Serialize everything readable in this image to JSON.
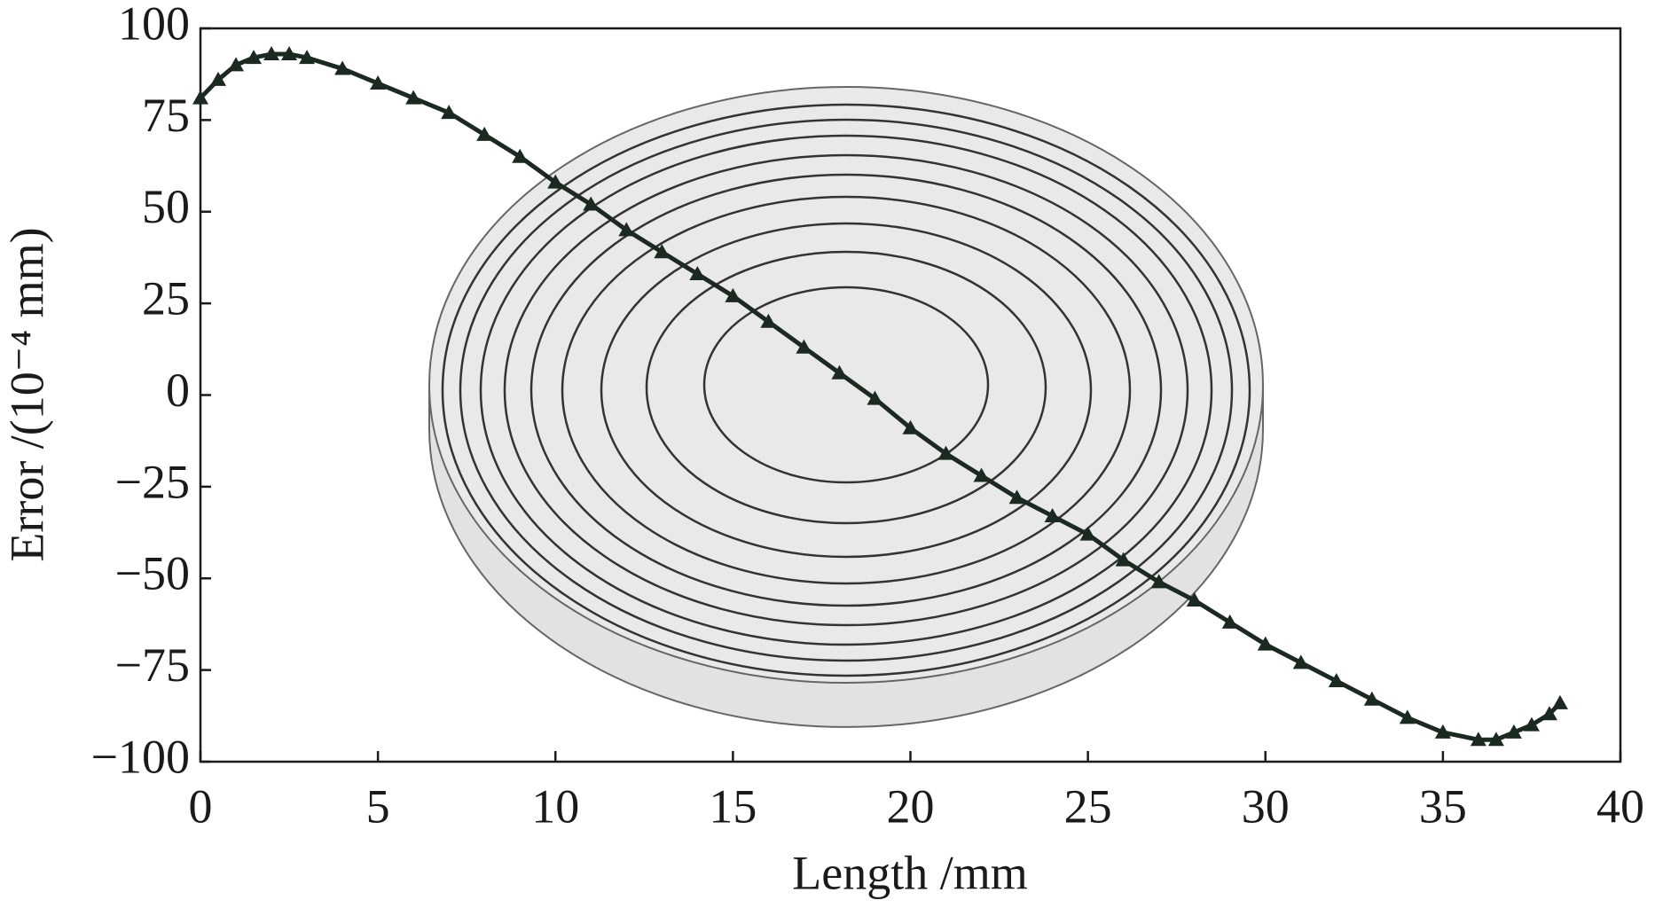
{
  "chart_data": {
    "type": "scatter",
    "xlabel": "Length /mm",
    "ylabel": "Error /(10⁻⁴ mm)",
    "series": [
      {
        "color": "#1b2a20",
        "x": [
          0,
          0.5,
          1,
          1.5,
          2,
          2.5,
          3,
          4,
          5,
          6,
          7,
          8,
          9,
          10,
          11,
          12,
          13,
          14,
          15,
          16,
          17,
          18,
          19,
          20,
          21,
          22,
          23,
          24,
          25,
          26,
          27,
          28,
          29,
          30,
          31,
          32,
          33,
          34,
          35,
          36,
          36.5,
          37,
          37.5,
          38,
          38.3
        ],
        "values": [
          81,
          86,
          90,
          92,
          93,
          93,
          92,
          89,
          85,
          81,
          77,
          71,
          65,
          58,
          52,
          45,
          39,
          33,
          27,
          20,
          13,
          6,
          -1,
          -9,
          -16,
          -22,
          -28,
          -33,
          -38,
          -45,
          -51,
          -56,
          -62,
          -68,
          -73,
          -78,
          -83,
          -88,
          -92,
          -94,
          -94,
          -92,
          -90,
          -87,
          -84
        ]
      }
    ],
    "xlim": [
      0,
      40
    ],
    "xticks": [
      0,
      5,
      10,
      15,
      20,
      25,
      30,
      35,
      40
    ],
    "ylim": [
      -100,
      100
    ],
    "yticks": [
      {
        "value": -100,
        "label": "−100"
      },
      {
        "value": -75,
        "label": "−75"
      },
      {
        "value": -50,
        "label": "−50"
      },
      {
        "value": -25,
        "label": "−25"
      },
      0,
      25,
      50,
      75,
      100
    ],
    "grid": false
  }
}
